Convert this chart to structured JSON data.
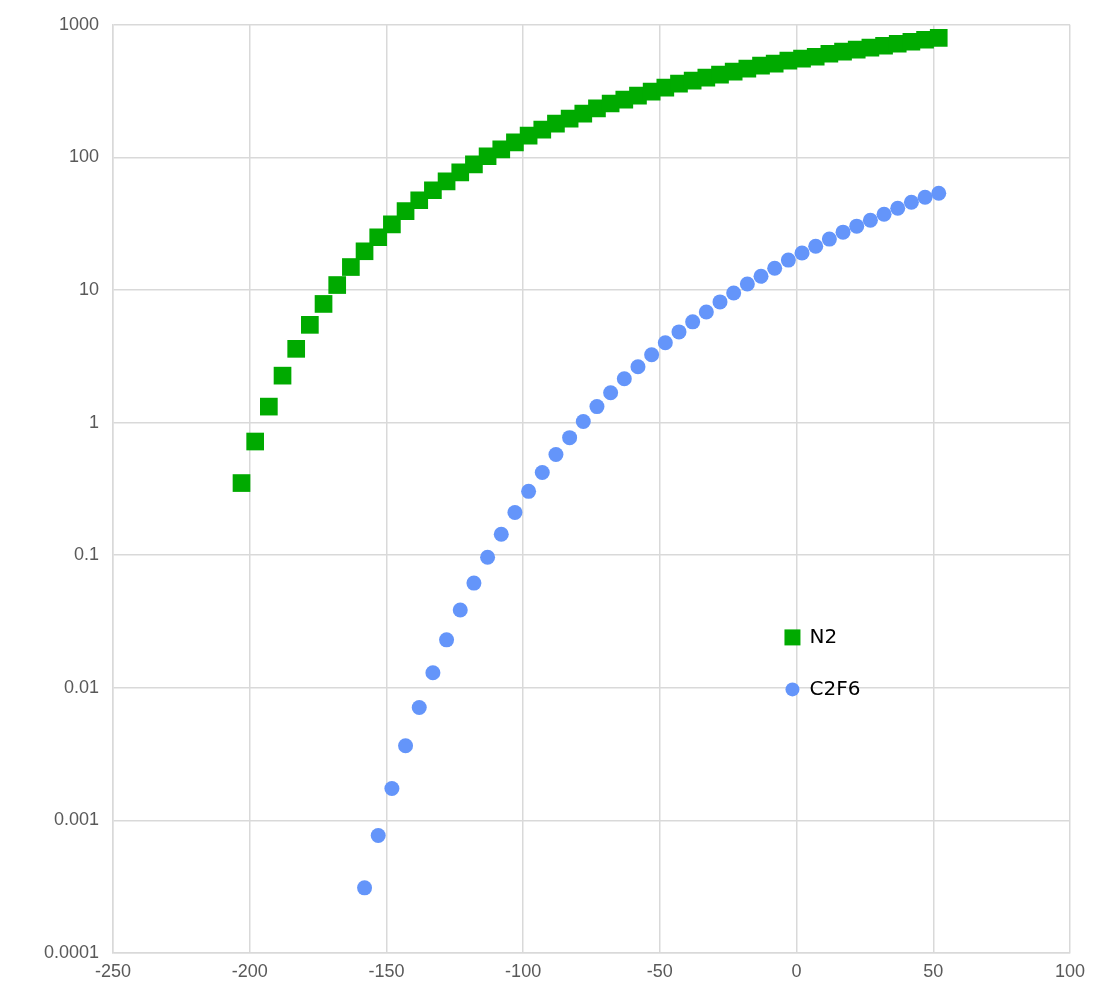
{
  "chart_data": {
    "type": "scatter",
    "log": "y",
    "grid": true,
    "legend": "right",
    "xlim": [
      -250,
      100
    ],
    "xticks": [
      -250,
      -200,
      -150,
      -100,
      -50,
      0,
      50,
      100
    ],
    "ylim": [
      0.0001,
      1000
    ],
    "yticks": [
      0.0001,
      0.001,
      0.01,
      0.1,
      1,
      10,
      100,
      1000
    ],
    "series": [
      {
        "name": "N2",
        "color": "#00aa00",
        "marker": "square",
        "x": [
          -203,
          -198,
          -193,
          -188,
          -183,
          -178,
          -173,
          -168,
          -163,
          -158,
          -153,
          -148,
          -143,
          -138,
          -133,
          -128,
          -123,
          -118,
          -113,
          -108,
          -103,
          -98,
          -93,
          -88,
          -83,
          -78,
          -73,
          -68,
          -63,
          -58,
          -53,
          -48,
          -43,
          -38,
          -33,
          -28,
          -23,
          -18,
          -13,
          -8,
          -3,
          2,
          7,
          12,
          17,
          22,
          27,
          32,
          37,
          42,
          47,
          52
        ],
        "values": [
          0.35,
          0.72,
          1.32,
          2.26,
          3.6,
          5.46,
          7.85,
          10.9,
          14.9,
          19.6,
          25,
          31.3,
          39.3,
          47.5,
          56.5,
          66,
          77,
          88.5,
          102,
          115,
          130,
          146,
          162,
          180,
          196,
          214,
          234,
          255,
          273,
          292,
          313,
          336,
          360,
          379,
          400,
          421,
          444,
          467,
          492,
          509,
          536,
          555,
          574,
          605,
          627,
          649,
          672,
          695,
          720,
          745,
          771,
          798
        ]
      },
      {
        "name": "C2F6",
        "color": "#6495fa",
        "marker": "circle",
        "x": [
          -158,
          -153,
          -148,
          -143,
          -138,
          -133,
          -128,
          -123,
          -118,
          -113,
          -108,
          -103,
          -98,
          -93,
          -88,
          -83,
          -78,
          -73,
          -68,
          -63,
          -58,
          -53,
          -48,
          -43,
          -38,
          -33,
          -28,
          -23,
          -18,
          -13,
          -8,
          -3,
          2,
          7,
          12,
          17,
          22,
          27,
          32,
          37,
          42,
          47,
          52
        ],
        "values": [
          0.00031,
          0.00077,
          0.00174,
          0.00366,
          0.0071,
          0.013,
          0.023,
          0.0386,
          0.0616,
          0.0966,
          0.144,
          0.21,
          0.303,
          0.42,
          0.574,
          0.77,
          1.02,
          1.32,
          1.68,
          2.14,
          2.64,
          3.25,
          4.0,
          4.83,
          5.75,
          6.83,
          8.13,
          9.5,
          11.1,
          12.7,
          14.6,
          16.8,
          19.0,
          21.4,
          24.2,
          27.3,
          30.3,
          33.6,
          37.3,
          41.4,
          45.9,
          50,
          53.6
        ]
      }
    ]
  }
}
